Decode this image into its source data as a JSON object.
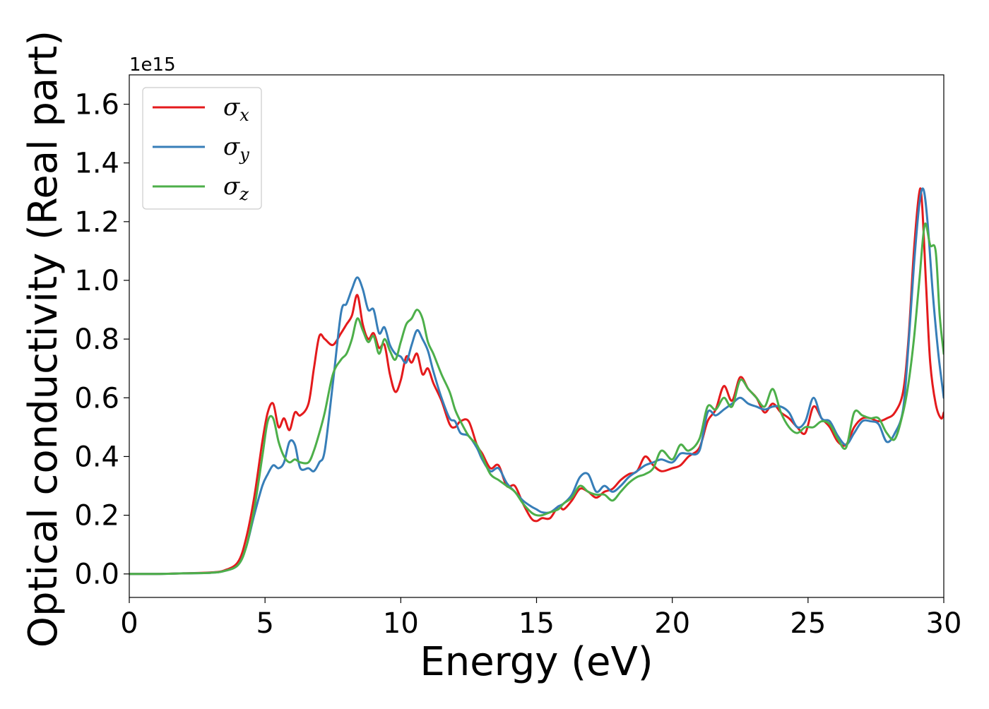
{
  "chart_data": {
    "type": "line",
    "title": "",
    "xlabel": "Energy (eV)",
    "ylabel": "Optical conductivity (Real part)",
    "y_multiplier_label": "1e15",
    "xlim": [
      0,
      30
    ],
    "ylim": [
      -0.08,
      1.7
    ],
    "x_ticks": [
      0,
      5,
      10,
      15,
      20,
      25,
      30
    ],
    "x_tick_labels": [
      "0",
      "5",
      "10",
      "15",
      "20",
      "25",
      "30"
    ],
    "y_ticks": [
      0.0,
      0.2,
      0.4,
      0.6,
      0.8,
      1.0,
      1.2,
      1.4,
      1.6
    ],
    "y_tick_labels": [
      "0.0",
      "0.2",
      "0.4",
      "0.6",
      "0.8",
      "1.0",
      "1.2",
      "1.4",
      "1.6"
    ],
    "grid": false,
    "legend_position": "top-left",
    "series": [
      {
        "name": "σx",
        "symbol": "σ",
        "subscript": "x",
        "color": "#e41a1c",
        "x": [
          0,
          1,
          2,
          3,
          3.5,
          4.0,
          4.3,
          4.6,
          4.9,
          5.1,
          5.3,
          5.5,
          5.7,
          5.9,
          6.1,
          6.3,
          6.6,
          6.8,
          7.0,
          7.2,
          7.5,
          7.8,
          8.0,
          8.2,
          8.4,
          8.6,
          8.8,
          9.0,
          9.2,
          9.4,
          9.6,
          9.8,
          10.0,
          10.2,
          10.4,
          10.6,
          10.8,
          11.0,
          11.2,
          11.5,
          11.8,
          12.0,
          12.2,
          12.5,
          12.8,
          13.0,
          13.3,
          13.6,
          13.9,
          14.2,
          14.5,
          14.8,
          15.0,
          15.2,
          15.5,
          15.8,
          16.0,
          16.3,
          16.6,
          16.9,
          17.2,
          17.5,
          17.8,
          18.1,
          18.4,
          18.7,
          19.0,
          19.3,
          19.6,
          20.0,
          20.3,
          20.6,
          21.0,
          21.3,
          21.6,
          21.9,
          22.2,
          22.5,
          22.8,
          23.1,
          23.4,
          23.7,
          24.0,
          24.3,
          24.6,
          24.9,
          25.2,
          25.5,
          25.8,
          26.1,
          26.4,
          26.7,
          27.0,
          27.3,
          27.6,
          27.9,
          28.2,
          28.5,
          28.7,
          28.9,
          29.1,
          29.2,
          29.35,
          29.5,
          29.7,
          29.9,
          30.0
        ],
        "values": [
          0.0,
          0.0,
          0.002,
          0.005,
          0.012,
          0.04,
          0.12,
          0.26,
          0.45,
          0.55,
          0.58,
          0.5,
          0.53,
          0.49,
          0.55,
          0.54,
          0.58,
          0.7,
          0.81,
          0.8,
          0.78,
          0.82,
          0.85,
          0.88,
          0.95,
          0.85,
          0.8,
          0.82,
          0.77,
          0.78,
          0.68,
          0.62,
          0.66,
          0.74,
          0.72,
          0.75,
          0.68,
          0.7,
          0.65,
          0.59,
          0.51,
          0.5,
          0.52,
          0.52,
          0.44,
          0.41,
          0.36,
          0.37,
          0.3,
          0.3,
          0.24,
          0.19,
          0.18,
          0.19,
          0.19,
          0.23,
          0.22,
          0.25,
          0.29,
          0.28,
          0.26,
          0.28,
          0.29,
          0.32,
          0.34,
          0.35,
          0.4,
          0.37,
          0.35,
          0.36,
          0.37,
          0.4,
          0.43,
          0.52,
          0.56,
          0.64,
          0.59,
          0.67,
          0.63,
          0.6,
          0.55,
          0.58,
          0.55,
          0.53,
          0.5,
          0.48,
          0.57,
          0.53,
          0.5,
          0.45,
          0.44,
          0.5,
          0.53,
          0.53,
          0.52,
          0.53,
          0.55,
          0.62,
          0.8,
          1.1,
          1.3,
          1.26,
          0.98,
          0.72,
          0.58,
          0.53,
          0.55
        ]
      },
      {
        "name": "σy",
        "symbol": "σ",
        "subscript": "y",
        "color": "#377eb8",
        "x": [
          0,
          1,
          2,
          3,
          3.5,
          4.0,
          4.3,
          4.6,
          4.9,
          5.1,
          5.3,
          5.5,
          5.7,
          5.9,
          6.1,
          6.3,
          6.6,
          6.8,
          7.0,
          7.2,
          7.5,
          7.8,
          8.0,
          8.2,
          8.4,
          8.6,
          8.8,
          9.0,
          9.2,
          9.4,
          9.6,
          9.8,
          10.0,
          10.2,
          10.4,
          10.6,
          10.8,
          11.0,
          11.2,
          11.5,
          11.8,
          12.0,
          12.2,
          12.5,
          12.8,
          13.0,
          13.3,
          13.6,
          13.9,
          14.2,
          14.5,
          14.8,
          15.0,
          15.2,
          15.5,
          15.8,
          16.0,
          16.3,
          16.6,
          16.9,
          17.2,
          17.5,
          17.8,
          18.1,
          18.4,
          18.7,
          19.0,
          19.3,
          19.6,
          20.0,
          20.3,
          20.6,
          21.0,
          21.3,
          21.6,
          21.9,
          22.2,
          22.5,
          22.8,
          23.1,
          23.4,
          23.7,
          24.0,
          24.3,
          24.6,
          24.9,
          25.2,
          25.5,
          25.8,
          26.1,
          26.4,
          26.7,
          27.0,
          27.3,
          27.6,
          27.9,
          28.2,
          28.5,
          28.7,
          28.9,
          29.1,
          29.25,
          29.4,
          29.6,
          29.8,
          30.0
        ],
        "values": [
          0.0,
          0.0,
          0.002,
          0.004,
          0.01,
          0.03,
          0.09,
          0.2,
          0.3,
          0.34,
          0.37,
          0.36,
          0.38,
          0.45,
          0.44,
          0.36,
          0.36,
          0.35,
          0.38,
          0.42,
          0.65,
          0.89,
          0.92,
          0.97,
          1.01,
          0.97,
          0.9,
          0.9,
          0.82,
          0.84,
          0.78,
          0.75,
          0.74,
          0.72,
          0.78,
          0.83,
          0.8,
          0.76,
          0.69,
          0.6,
          0.53,
          0.52,
          0.48,
          0.47,
          0.43,
          0.39,
          0.35,
          0.36,
          0.31,
          0.28,
          0.25,
          0.23,
          0.22,
          0.21,
          0.21,
          0.23,
          0.24,
          0.27,
          0.33,
          0.34,
          0.28,
          0.3,
          0.28,
          0.3,
          0.33,
          0.35,
          0.37,
          0.38,
          0.39,
          0.38,
          0.41,
          0.41,
          0.42,
          0.55,
          0.54,
          0.56,
          0.58,
          0.6,
          0.58,
          0.57,
          0.56,
          0.57,
          0.57,
          0.55,
          0.5,
          0.52,
          0.6,
          0.53,
          0.52,
          0.47,
          0.44,
          0.48,
          0.52,
          0.52,
          0.51,
          0.45,
          0.48,
          0.56,
          0.78,
          1.05,
          1.26,
          1.31,
          1.2,
          0.95,
          0.75,
          0.6
        ]
      },
      {
        "name": "σz",
        "symbol": "σ",
        "subscript": "z",
        "color": "#4daf4a",
        "x": [
          0,
          1,
          2,
          3,
          3.5,
          4.0,
          4.3,
          4.6,
          4.9,
          5.1,
          5.3,
          5.5,
          5.7,
          5.9,
          6.1,
          6.3,
          6.6,
          6.8,
          7.0,
          7.2,
          7.5,
          7.8,
          8.0,
          8.2,
          8.4,
          8.6,
          8.8,
          9.0,
          9.2,
          9.4,
          9.6,
          9.8,
          10.0,
          10.2,
          10.4,
          10.6,
          10.8,
          11.0,
          11.2,
          11.5,
          11.8,
          12.0,
          12.2,
          12.5,
          12.8,
          13.0,
          13.3,
          13.6,
          13.9,
          14.2,
          14.5,
          14.8,
          15.0,
          15.2,
          15.5,
          15.8,
          16.0,
          16.3,
          16.6,
          16.9,
          17.2,
          17.5,
          17.8,
          18.1,
          18.4,
          18.7,
          19.0,
          19.3,
          19.6,
          20.0,
          20.3,
          20.6,
          21.0,
          21.3,
          21.6,
          21.9,
          22.2,
          22.5,
          22.8,
          23.1,
          23.4,
          23.7,
          24.0,
          24.3,
          24.6,
          24.9,
          25.2,
          25.5,
          25.8,
          26.1,
          26.4,
          26.7,
          27.0,
          27.3,
          27.6,
          27.9,
          28.2,
          28.5,
          28.7,
          28.9,
          29.1,
          29.3,
          29.5,
          29.7,
          29.85,
          30.0
        ],
        "values": [
          0.0,
          0.0,
          0.002,
          0.004,
          0.01,
          0.03,
          0.09,
          0.22,
          0.4,
          0.52,
          0.53,
          0.45,
          0.4,
          0.38,
          0.39,
          0.38,
          0.38,
          0.42,
          0.48,
          0.55,
          0.68,
          0.73,
          0.75,
          0.8,
          0.87,
          0.83,
          0.79,
          0.81,
          0.75,
          0.8,
          0.76,
          0.73,
          0.79,
          0.85,
          0.87,
          0.9,
          0.87,
          0.79,
          0.75,
          0.68,
          0.62,
          0.56,
          0.52,
          0.47,
          0.44,
          0.4,
          0.34,
          0.32,
          0.3,
          0.28,
          0.24,
          0.21,
          0.2,
          0.2,
          0.21,
          0.22,
          0.24,
          0.26,
          0.3,
          0.28,
          0.27,
          0.27,
          0.25,
          0.28,
          0.31,
          0.33,
          0.34,
          0.36,
          0.42,
          0.39,
          0.44,
          0.42,
          0.46,
          0.57,
          0.56,
          0.6,
          0.57,
          0.66,
          0.63,
          0.6,
          0.57,
          0.63,
          0.55,
          0.5,
          0.48,
          0.5,
          0.5,
          0.52,
          0.51,
          0.46,
          0.43,
          0.55,
          0.54,
          0.53,
          0.53,
          0.48,
          0.46,
          0.55,
          0.65,
          0.8,
          1.0,
          1.19,
          1.12,
          1.1,
          0.88,
          0.75
        ]
      }
    ]
  }
}
